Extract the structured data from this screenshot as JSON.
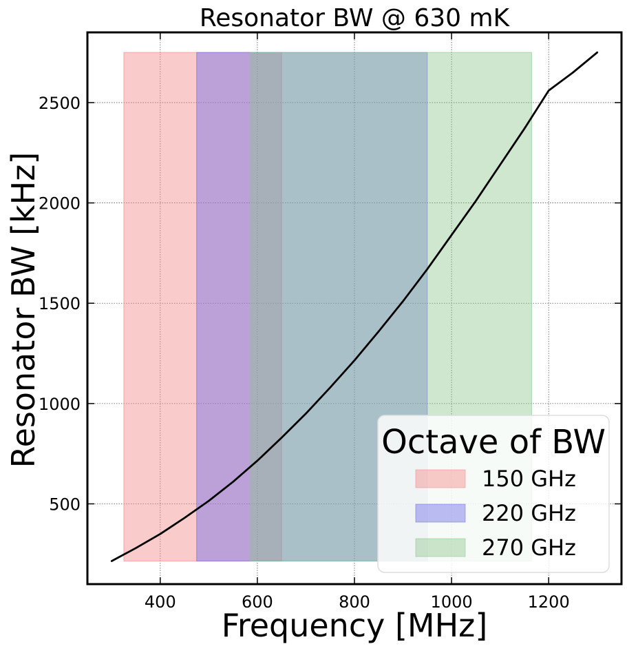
{
  "chart_data": {
    "type": "line",
    "title": "Resonator BW @ 630 mK",
    "xlabel": "Frequency [MHz]",
    "ylabel": "Resonator BW [kHz]",
    "xlim": [
      250,
      1350
    ],
    "ylim": [
      100,
      2850
    ],
    "xticks": [
      400,
      600,
      800,
      1000,
      1200
    ],
    "yticks": [
      500,
      1000,
      1500,
      2000,
      2500
    ],
    "grid": true,
    "grid_style": "dotted",
    "series": [
      {
        "color": "#000000",
        "x": [
          300,
          350,
          400,
          450,
          500,
          550,
          600,
          650,
          700,
          750,
          800,
          850,
          900,
          950,
          1000,
          1050,
          1100,
          1150,
          1200,
          1250,
          1300
        ],
        "values": [
          215,
          280,
          350,
          430,
          515,
          610,
          715,
          830,
          950,
          1080,
          1215,
          1360,
          1510,
          1670,
          1840,
          2010,
          2190,
          2370,
          2560,
          2650,
          2750
        ]
      }
    ],
    "bands": [
      {
        "name": "150 GHz",
        "x_start": 325,
        "x_end": 650,
        "y_start": 215,
        "y_end": 2750,
        "color": "#f38b8b",
        "opacity": 0.45
      },
      {
        "name": "220 GHz",
        "x_start": 475,
        "x_end": 950,
        "y_start": 215,
        "y_end": 2750,
        "color": "#6f6fe8",
        "opacity": 0.45
      },
      {
        "name": "270 GHz",
        "x_start": 585,
        "x_end": 1165,
        "y_start": 215,
        "y_end": 2750,
        "color": "#8cc48c",
        "opacity": 0.42
      }
    ],
    "legend": {
      "title": "Octave of BW",
      "position": "lower-right",
      "entries": [
        {
          "label": "150 GHz",
          "color": "#f38b8b"
        },
        {
          "label": "220 GHz",
          "color": "#6f6fe8"
        },
        {
          "label": "270 GHz",
          "color": "#8cc48c"
        }
      ]
    }
  }
}
